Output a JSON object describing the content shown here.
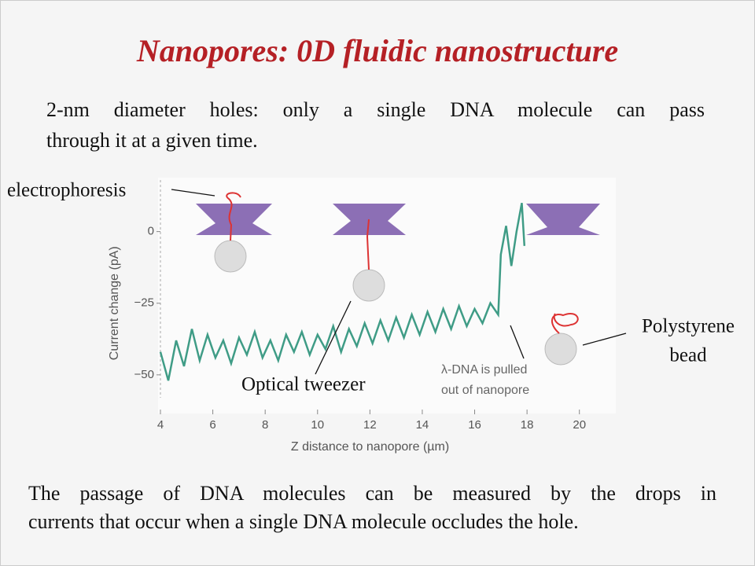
{
  "title": "Nanopores: 0D fluidic nanostructure",
  "intro": [
    "2-nm diameter holes: only a single DNA molecule can pass",
    "through it at a given time."
  ],
  "footer": [
    "The passage of DNA molecules can be measured by the drops in",
    "currents that occur when a single DNA molecule occludes the hole."
  ],
  "chart_data": {
    "type": "line",
    "xlabel": "Z distance to nanopore (µm)",
    "ylabel": "Current change (pA)",
    "annotations": [
      "electrophoresis",
      "Optical tweezer",
      "Polystyrene",
      "bead",
      "λ-DNA is pulled",
      "out of nanopore"
    ],
    "x": [
      4.0,
      4.3,
      4.6,
      4.9,
      5.2,
      5.5,
      5.8,
      6.1,
      6.4,
      6.7,
      7.0,
      7.3,
      7.6,
      7.9,
      8.2,
      8.5,
      8.8,
      9.1,
      9.4,
      9.7,
      10.0,
      10.3,
      10.6,
      10.9,
      11.2,
      11.5,
      11.8,
      12.1,
      12.4,
      12.7,
      13.0,
      13.3,
      13.6,
      13.9,
      14.2,
      14.5,
      14.8,
      15.1,
      15.4,
      15.7,
      16.0,
      16.3,
      16.6,
      16.9,
      17.0,
      17.2,
      17.4,
      17.6,
      17.8,
      17.9
    ],
    "series": [
      {
        "color": "#3f9c86",
        "values": [
          -42,
          -52,
          -38,
          -47,
          -34,
          -45,
          -36,
          -44,
          -38,
          -46,
          -37,
          -43,
          -35,
          -44,
          -38,
          -45,
          -36,
          -42,
          -35,
          -43,
          -36,
          -41,
          -33,
          -42,
          -34,
          -40,
          -32,
          -39,
          -31,
          -38,
          -30,
          -37,
          -29,
          -36,
          -28,
          -35,
          -27,
          -34,
          -26,
          -33,
          -27,
          -32,
          -25,
          -29,
          -8,
          2,
          -12,
          0,
          10,
          -5
        ]
      }
    ],
    "xlim": [
      4,
      21.3
    ],
    "ylim": [
      -58,
      18
    ],
    "xticks": [
      4,
      6,
      8,
      10,
      12,
      14,
      16,
      18,
      20
    ],
    "yticks": [
      0,
      {
        "value": -25,
        "label": "−25"
      },
      {
        "value": -50,
        "label": "−50"
      }
    ]
  }
}
